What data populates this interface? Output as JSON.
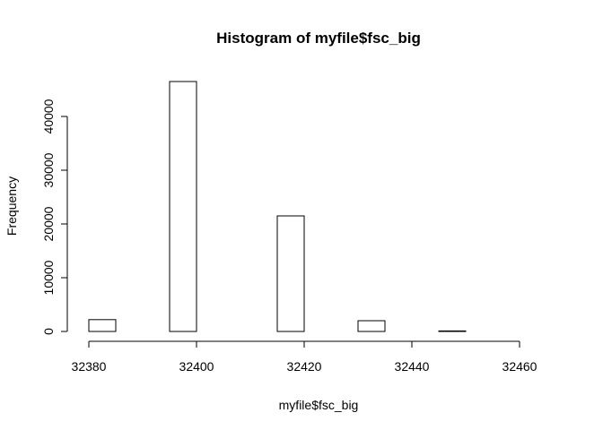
{
  "chart_data": {
    "type": "bar",
    "title": "Histogram of myfile$fsc_big",
    "xlabel": "myfile$fsc_big",
    "ylabel": "Frequency",
    "bin_width": 5,
    "bins": [
      {
        "x0": 32380,
        "x1": 32385,
        "count": 2200
      },
      {
        "x0": 32385,
        "x1": 32390,
        "count": 0
      },
      {
        "x0": 32390,
        "x1": 32395,
        "count": 0
      },
      {
        "x0": 32395,
        "x1": 32400,
        "count": 46500
      },
      {
        "x0": 32400,
        "x1": 32405,
        "count": 0
      },
      {
        "x0": 32405,
        "x1": 32410,
        "count": 0
      },
      {
        "x0": 32410,
        "x1": 32415,
        "count": 0
      },
      {
        "x0": 32415,
        "x1": 32420,
        "count": 21500
      },
      {
        "x0": 32420,
        "x1": 32425,
        "count": 0
      },
      {
        "x0": 32425,
        "x1": 32430,
        "count": 0
      },
      {
        "x0": 32430,
        "x1": 32435,
        "count": 2000
      },
      {
        "x0": 32435,
        "x1": 32440,
        "count": 0
      },
      {
        "x0": 32440,
        "x1": 32445,
        "count": 0
      },
      {
        "x0": 32445,
        "x1": 32450,
        "count": 100
      },
      {
        "x0": 32450,
        "x1": 32455,
        "count": 0
      },
      {
        "x0": 32455,
        "x1": 32460,
        "count": 0
      },
      {
        "x0": 32460,
        "x1": 32465,
        "count": 0
      }
    ],
    "x_ticks": [
      32380,
      32400,
      32420,
      32440,
      32460
    ],
    "y_ticks": [
      0,
      10000,
      20000,
      30000,
      40000
    ],
    "xlim": [
      32380,
      32465
    ],
    "ylim": [
      0,
      46500
    ],
    "grid": false,
    "legend": "none"
  }
}
